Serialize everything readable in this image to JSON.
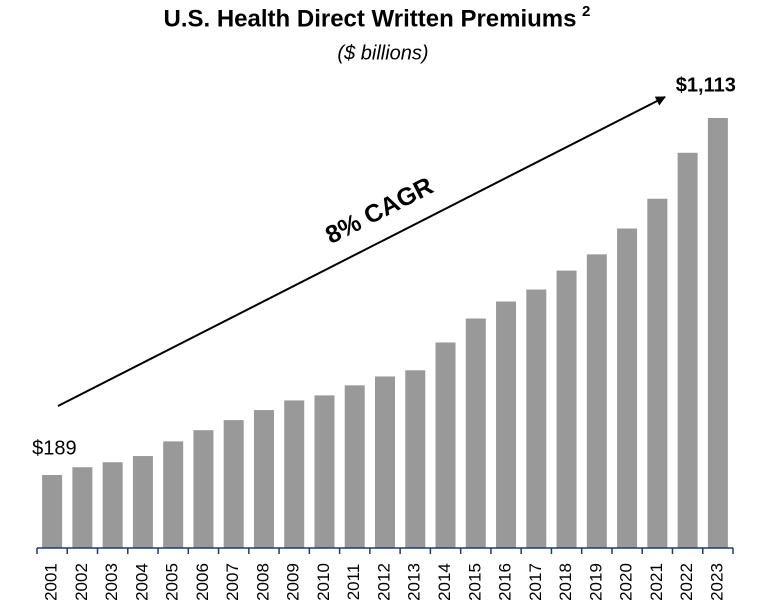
{
  "chart_data": {
    "type": "bar",
    "title": "U.S. Health Direct Written Premiums",
    "title_footnote": "2",
    "subtitle": "($ billions)",
    "annotation": "8% CAGR",
    "categories": [
      "2001",
      "2002",
      "2003",
      "2004",
      "2005",
      "2006",
      "2007",
      "2008",
      "2009",
      "2010",
      "2011",
      "2012",
      "2013",
      "2014",
      "2015",
      "2016",
      "2017",
      "2018",
      "2019",
      "2020",
      "2021",
      "2022",
      "2023"
    ],
    "values": [
      189,
      209,
      222,
      238,
      276,
      305,
      331,
      357,
      382,
      395,
      421,
      444,
      460,
      532,
      594,
      638,
      669,
      718,
      760,
      827,
      904,
      1023,
      1113
    ],
    "value_labels": [
      "$189",
      null,
      null,
      null,
      null,
      null,
      null,
      null,
      null,
      null,
      null,
      null,
      null,
      null,
      null,
      null,
      null,
      null,
      null,
      null,
      null,
      null,
      "$1,113"
    ],
    "color": "#999999"
  }
}
